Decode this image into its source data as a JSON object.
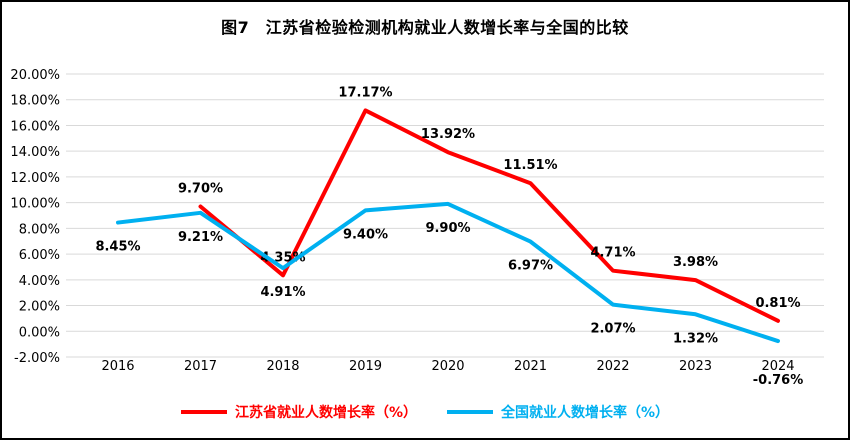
{
  "chart_data": {
    "type": "line",
    "title": "图7　江苏省检验检测机构就业人数增长率与全国的比较",
    "categories": [
      "2016",
      "2017",
      "2018",
      "2019",
      "2020",
      "2021",
      "2022",
      "2023",
      "2024"
    ],
    "series": [
      {
        "name": "江苏省就业人数增长率（%）",
        "color": "#FF0000",
        "values": [
          null,
          9.7,
          4.35,
          17.17,
          13.92,
          11.51,
          4.71,
          3.98,
          0.81
        ],
        "labels": [
          "",
          "9.70%",
          "4.35%",
          "17.17%",
          "13.92%",
          "11.51%",
          "4.71%",
          "3.98%",
          "0.81%"
        ],
        "label_position": "above"
      },
      {
        "name": "全国就业人数增长率（%）",
        "color": "#00B0F0",
        "values": [
          8.45,
          9.21,
          4.91,
          9.4,
          9.9,
          6.97,
          2.07,
          1.32,
          -0.76
        ],
        "labels": [
          "8.45%",
          "9.21%",
          "4.91%",
          "9.40%",
          "9.90%",
          "6.97%",
          "2.07%",
          "1.32%",
          "-0.76%"
        ],
        "label_position": "below"
      }
    ],
    "y_axis": {
      "min": -2,
      "max": 20,
      "step": 2,
      "tick_labels": [
        "20.00%",
        "18.00%",
        "16.00%",
        "14.00%",
        "12.00%",
        "10.00%",
        "8.00%",
        "6.00%",
        "4.00%",
        "2.00%",
        "0.00%",
        "-2.00%"
      ]
    },
    "grid": true,
    "legend_position": "bottom",
    "colors": {
      "gridline": "#d9d9d9",
      "text": "#000000",
      "background": "#ffffff",
      "border": "#000000"
    }
  }
}
